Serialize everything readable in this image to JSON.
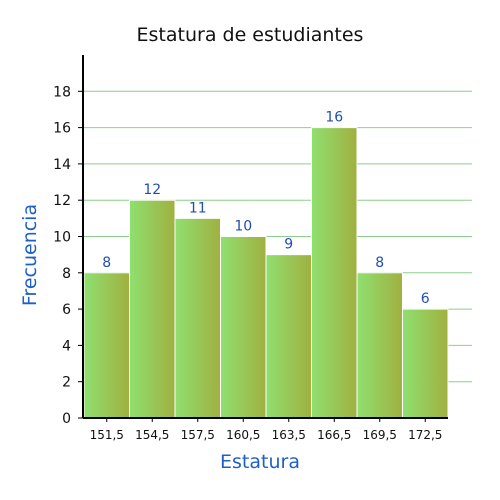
{
  "chart_data": {
    "type": "bar",
    "title": "Estatura de estudiantes",
    "xlabel": "Estatura",
    "ylabel": "Frecuencia",
    "categories": [
      "151,5",
      "154,5",
      "157,5",
      "160,5",
      "163,5",
      "166,5",
      "169,5",
      "172,5"
    ],
    "values": [
      8,
      12,
      11,
      10,
      9,
      16,
      8,
      6
    ],
    "data_labels": [
      "8",
      "12",
      "11",
      "10",
      "9",
      "16",
      "8",
      "6"
    ],
    "yticks": [
      "0",
      "2",
      "4",
      "6",
      "8",
      "10",
      "12",
      "14",
      "16",
      "18"
    ],
    "ylim": [
      0,
      20
    ],
    "grid": true,
    "colors": {
      "bar_light": "#8fe070",
      "bar_dark": "#a0b040",
      "grid": "#8ccf8c",
      "axis": "#000000",
      "data_label": "#1f4fb0",
      "axis_label": "#1f5fc8"
    }
  }
}
